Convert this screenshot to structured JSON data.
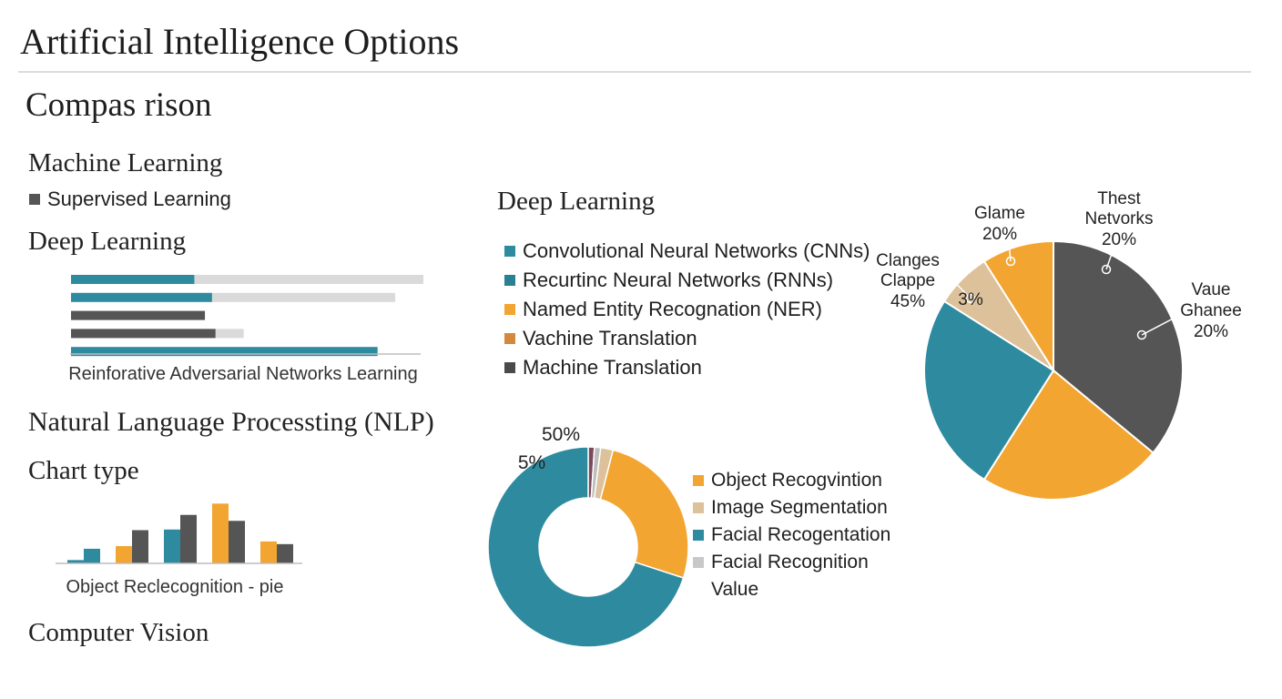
{
  "page": {
    "title": "Artificial Intelligence Options",
    "subtitle": "Compas rison"
  },
  "left_panel": {
    "ml_heading": "Machine Learning",
    "ml_legend": [
      {
        "label": "Supervised Learning",
        "color": "#555555"
      }
    ],
    "dl_heading": "Deep Learning",
    "nlp_heading": "Natural Language Processting (NLP)",
    "chart_type_heading": "Chart type",
    "cv_heading": "Computer Vision"
  },
  "middle_panel": {
    "dl_heading": "Deep Learning",
    "dl_legend": [
      {
        "label": "Convolutional Neural Networks (CNNs)",
        "color": "#2e8b9f"
      },
      {
        "label": "Recurtinc Neural Networks (RNNs)",
        "color": "#2a7f93"
      },
      {
        "label": "Named Entity Recognation (NER)",
        "color": "#f3a532"
      },
      {
        "label": "Vachine Translation",
        "color": "#d48a3c"
      },
      {
        "label": "Machine Translation",
        "color": "#4a4a4a"
      }
    ]
  },
  "colors": {
    "teal": "#2e8b9f",
    "orange": "#f3a532",
    "dark": "#555555",
    "tan": "#dcc19a",
    "light_gray": "#d9d9d9",
    "gray": "#bdbdbd",
    "maroon": "#7a4a5a"
  },
  "chart_data": [
    {
      "type": "bar",
      "orientation": "horizontal",
      "xlabel": "Reinforative Adversarial Networks Learning",
      "xlim": [
        0,
        100
      ],
      "bars": [
        {
          "value": 35,
          "background": 100,
          "color": "#2e8b9f"
        },
        {
          "value": 40,
          "background": 92,
          "color": "#2e8b9f"
        },
        {
          "value": 38,
          "background": 0,
          "color": "#555555"
        },
        {
          "value": 41,
          "background": 49,
          "color": "#555555"
        },
        {
          "value": 87,
          "background": 0,
          "color": "#2e8b9f"
        }
      ]
    },
    {
      "type": "bar",
      "xlabel": "Object Reclecognition - pie",
      "ylim": [
        0,
        100
      ],
      "groups": [
        [
          {
            "value": 5,
            "color": "#2e8b9f"
          },
          {
            "value": 22,
            "color": "#2e8b9f"
          }
        ],
        [
          {
            "value": 26,
            "color": "#f3a532"
          },
          {
            "value": 50,
            "color": "#555555"
          }
        ],
        [
          {
            "value": 51,
            "color": "#2e8b9f"
          },
          {
            "value": 73,
            "color": "#555555"
          }
        ],
        [
          {
            "value": 90,
            "color": "#f3a532"
          },
          {
            "value": 64,
            "color": "#555555"
          }
        ],
        [
          {
            "value": 33,
            "color": "#f3a532"
          },
          {
            "value": 29,
            "color": "#555555"
          }
        ]
      ]
    },
    {
      "type": "pie",
      "variant": "donut",
      "slices": [
        {
          "value": 1,
          "color": "#7a4a5a"
        },
        {
          "value": 1,
          "color": "#bdbdbd"
        },
        {
          "value": 2,
          "color": "#dcc19a"
        },
        {
          "value": 26,
          "color": "#f3a532"
        },
        {
          "value": 70,
          "color": "#2e8b9f"
        }
      ],
      "labels": [
        {
          "text": "50%"
        },
        {
          "text": "5%"
        }
      ],
      "legend": [
        {
          "label": "Object Recogvintion",
          "color": "#f3a532"
        },
        {
          "label": "Image Segmentation",
          "color": "#dcc19a"
        },
        {
          "label": "Facial Recogentation",
          "color": "#2e8b9f"
        },
        {
          "label": "Facial Recognition",
          "color": "#c8c8c8"
        },
        {
          "label": "Value",
          "color": ""
        }
      ]
    },
    {
      "type": "pie",
      "slices": [
        {
          "value": 36,
          "color": "#555555"
        },
        {
          "value": 23,
          "color": "#f3a532"
        },
        {
          "value": 25,
          "color": "#2e8b9f"
        },
        {
          "value": 7,
          "color": "#dcc19a"
        },
        {
          "value": 9,
          "color": "#f3a532"
        }
      ],
      "annotations": [
        {
          "line1": "Glame",
          "line2": "20%"
        },
        {
          "line1": "Thest",
          "line2": "Netvorks",
          "line3": "20%"
        },
        {
          "line1": "Clanges",
          "line2": "Clappe",
          "line3": "45%"
        },
        {
          "line1": "3%"
        },
        {
          "line1": "Vaue",
          "line2": "Ghanee",
          "line3": "20%"
        }
      ]
    }
  ]
}
